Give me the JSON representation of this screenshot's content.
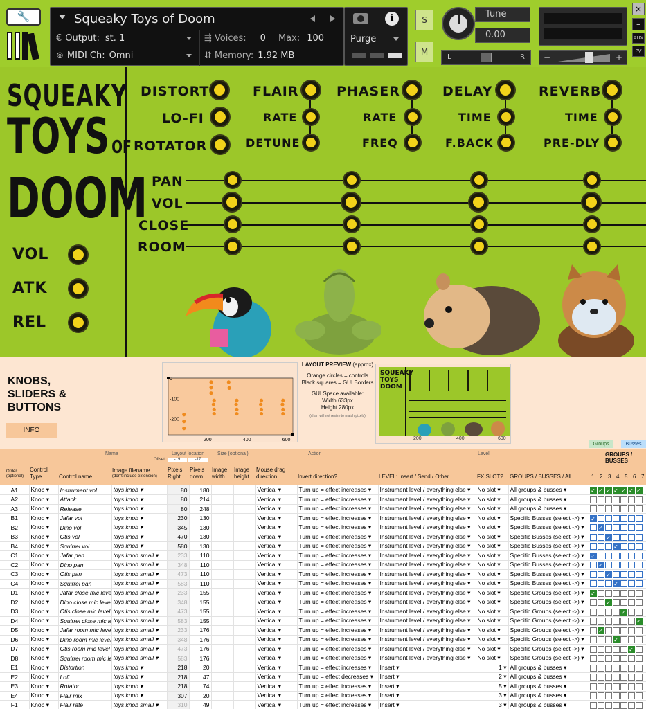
{
  "kontakt": {
    "instrument_name": "Squeaky Toys of Doom",
    "output_label": "Output:",
    "output_value": "st. 1",
    "voices_label": "Voices:",
    "voices_value": "0",
    "max_label": "Max:",
    "max_value": "100",
    "purge_label": "Purge",
    "midi_label": "MIDI Ch:",
    "midi_value": "Omni",
    "memory_label": "Memory:",
    "memory_value": "1.92 MB",
    "tune_label": "Tune",
    "tune_value": "0.00",
    "pan_left": "L",
    "pan_right": "R",
    "solo_label": "S",
    "mute_label": "M",
    "aux_label": "AUX",
    "pv_label": "PV",
    "minus_label": "−",
    "plus_label": "+",
    "close_label": "×",
    "min_label": "–"
  },
  "gui": {
    "logo_line1": "SQUEAKY",
    "logo_line2": "TOYS",
    "logo_of": "OF",
    "logo_line3": "DOOM",
    "left_knobs": [
      "VOL",
      "ATK",
      "REL"
    ],
    "fx": {
      "row1": [
        "DISTORT",
        "FLAIR",
        "PHASER",
        "DELAY",
        "REVERB"
      ],
      "row2": [
        "LO-FI",
        "RATE",
        "RATE",
        "TIME",
        "TIME"
      ],
      "row3": [
        "ROTATOR",
        "DETUNE",
        "FREQ",
        "F.BACK",
        "PRE-DLY"
      ]
    },
    "mixer_rows": [
      "PAN",
      "VOL",
      "CLOSE",
      "ROOM"
    ]
  },
  "sheet": {
    "title_line1": "KNOBS,",
    "title_line2": "SLIDERS &",
    "title_line3": "BUTTONS",
    "info_button": "INFO",
    "preview_title": "LAYOUT PREVIEW",
    "preview_approx": "(approx)",
    "preview_legend1": "Orange circles = controls",
    "preview_legend2": "Black squares = GUI Borders",
    "preview_space": "GUI Space available:",
    "preview_width": "Width 633px",
    "preview_height": "Height 280px",
    "preview_note": "(chart will not resize to match pixels)",
    "chart_ticks_x": [
      "200",
      "400",
      "600"
    ],
    "chart_ticks_y": [
      "0",
      "-100",
      "-200"
    ],
    "group_headers": {
      "name": "Name",
      "layout_location": "Layout location",
      "size": "Size (optional)",
      "action": "Action",
      "level": "Level",
      "groups_busses": "GROUPS / BUSSES",
      "groups_tab": "Groups",
      "busses_tab": "Busses",
      "offset_label": "Offset",
      "offset_x": "-19",
      "offset_y": "-17"
    },
    "columns": {
      "order": "Order (optional)",
      "control_type": "Control Type",
      "control_name": "Control name",
      "image_filename": "Image filename",
      "image_filename_sub": "(don't include extension)",
      "pixels_right": "Pixels Right",
      "pixels_down": "Pixels down",
      "image_width": "Image width",
      "image_height": "Image height",
      "mouse_drag": "Mouse drag direction",
      "invert": "Invert direction?",
      "level": "LEVEL: Insert / Send / Other",
      "fx_slot": "FX SLOT?",
      "groups_busses_all": "GROUPS / BUSSES / All",
      "slot_numbers": [
        "1",
        "2",
        "3",
        "4",
        "5",
        "6",
        "7"
      ]
    },
    "rows": [
      {
        "id": "A1",
        "type": "Knob",
        "name": "Instrument vol",
        "image": "toys knob",
        "x": "80",
        "y": "180",
        "drag": "Vertical",
        "invert": "Turn up = effect increases",
        "level": "Instrument level / everything else",
        "fx": "No slot",
        "groups": "All groups & busses",
        "checks": "all"
      },
      {
        "id": "A2",
        "type": "Knob",
        "name": "Attack",
        "image": "toys knob",
        "x": "80",
        "y": "214",
        "drag": "Vertical",
        "invert": "Turn up = effect increases",
        "level": "Instrument level / everything else",
        "fx": "No slot",
        "groups": "All groups & busses",
        "checks": "none"
      },
      {
        "id": "A3",
        "type": "Knob",
        "name": "Release",
        "image": "toys knob",
        "x": "80",
        "y": "248",
        "drag": "Vertical",
        "invert": "Turn up = effect increases",
        "level": "Instrument level / everything else",
        "fx": "No slot",
        "groups": "All groups & busses",
        "checks": "none"
      },
      {
        "id": "B1",
        "type": "Knob",
        "name": "Jafar vol",
        "image": "toys knob",
        "x": "230",
        "y": "130",
        "drag": "Vertical",
        "invert": "Turn up = effect increases",
        "level": "Instrument level / everything else",
        "fx": "No slot",
        "groups": "Specific Busses (select ->)",
        "checks": "b1"
      },
      {
        "id": "B2",
        "type": "Knob",
        "name": "Dino vol",
        "image": "toys knob",
        "x": "345",
        "y": "130",
        "drag": "Vertical",
        "invert": "Turn up = effect increases",
        "level": "Instrument level / everything else",
        "fx": "No slot",
        "groups": "Specific Busses (select ->)",
        "checks": "b2"
      },
      {
        "id": "B3",
        "type": "Knob",
        "name": "Otis vol",
        "image": "toys knob",
        "x": "470",
        "y": "130",
        "drag": "Vertical",
        "invert": "Turn up = effect increases",
        "level": "Instrument level / everything else",
        "fx": "No slot",
        "groups": "Specific Busses (select ->)",
        "checks": "b3"
      },
      {
        "id": "B4",
        "type": "Knob",
        "name": "Squirrel vol",
        "image": "toys knob",
        "x": "580",
        "y": "130",
        "drag": "Vertical",
        "invert": "Turn up = effect increases",
        "level": "Instrument level / everything else",
        "fx": "No slot",
        "groups": "Specific Busses (select ->)",
        "checks": "b4"
      },
      {
        "id": "C1",
        "type": "Knob",
        "name": "Jafar pan",
        "image": "toys knob small",
        "x": "233",
        "y": "110",
        "drag": "Vertical",
        "invert": "Turn up = effect increases",
        "level": "Instrument level / everything else",
        "fx": "No slot",
        "groups": "Specific Busses (select ->)",
        "checks": "b1"
      },
      {
        "id": "C2",
        "type": "Knob",
        "name": "Dino pan",
        "image": "toys knob small",
        "x": "348",
        "y": "110",
        "drag": "Vertical",
        "invert": "Turn up = effect increases",
        "level": "Instrument level / everything else",
        "fx": "No slot",
        "groups": "Specific Busses (select ->)",
        "checks": "b2"
      },
      {
        "id": "C3",
        "type": "Knob",
        "name": "Otis pan",
        "image": "toys knob small",
        "x": "473",
        "y": "110",
        "drag": "Vertical",
        "invert": "Turn up = effect increases",
        "level": "Instrument level / everything else",
        "fx": "No slot",
        "groups": "Specific Busses (select ->)",
        "checks": "b3"
      },
      {
        "id": "C4",
        "type": "Knob",
        "name": "Squirrel pan",
        "image": "toys knob small",
        "x": "583",
        "y": "110",
        "drag": "Vertical",
        "invert": "Turn up = effect increases",
        "level": "Instrument level / everything else",
        "fx": "No slot",
        "groups": "Specific Busses (select ->)",
        "checks": "b4"
      },
      {
        "id": "D1",
        "type": "Knob",
        "name": "Jafar close mic leve",
        "image": "toys knob small",
        "x": "233",
        "y": "155",
        "drag": "Vertical",
        "invert": "Turn up = effect increases",
        "level": "Instrument level / everything else",
        "fx": "No slot",
        "groups": "Specific Groups (select ->)",
        "checks": "g1"
      },
      {
        "id": "D2",
        "type": "Knob",
        "name": "Dino close mic leve",
        "image": "toys knob small",
        "x": "348",
        "y": "155",
        "drag": "Vertical",
        "invert": "Turn up = effect increases",
        "level": "Instrument level / everything else",
        "fx": "No slot",
        "groups": "Specific Groups (select ->)",
        "checks": "g3"
      },
      {
        "id": "D3",
        "type": "Knob",
        "name": "Otis close mic level",
        "image": "toys knob small",
        "x": "473",
        "y": "155",
        "drag": "Vertical",
        "invert": "Turn up = effect increases",
        "level": "Instrument level / everything else",
        "fx": "No slot",
        "groups": "Specific Groups (select ->)",
        "checks": "g5"
      },
      {
        "id": "D4",
        "type": "Knob",
        "name": "Squirrel close mic le",
        "image": "toys knob small",
        "x": "583",
        "y": "155",
        "drag": "Vertical",
        "invert": "Turn up = effect increases",
        "level": "Instrument level / everything else",
        "fx": "No slot",
        "groups": "Specific Groups (select ->)",
        "checks": "g7"
      },
      {
        "id": "D5",
        "type": "Knob",
        "name": "Jafar room mic leve",
        "image": "toys knob small",
        "x": "233",
        "y": "176",
        "drag": "Vertical",
        "invert": "Turn up = effect increases",
        "level": "Instrument level / everything else",
        "fx": "No slot",
        "groups": "Specific Groups (select ->)",
        "checks": "g2"
      },
      {
        "id": "D6",
        "type": "Knob",
        "name": "Dino room mic level",
        "image": "toys knob small",
        "x": "348",
        "y": "176",
        "drag": "Vertical",
        "invert": "Turn up = effect increases",
        "level": "Instrument level / everything else",
        "fx": "No slot",
        "groups": "Specific Groups (select ->)",
        "checks": "g4"
      },
      {
        "id": "D7",
        "type": "Knob",
        "name": "Otis room mic level",
        "image": "toys knob small",
        "x": "473",
        "y": "176",
        "drag": "Vertical",
        "invert": "Turn up = effect increases",
        "level": "Instrument level / everything else",
        "fx": "No slot",
        "groups": "Specific Groups (select ->)",
        "checks": "g6"
      },
      {
        "id": "D8",
        "type": "Knob",
        "name": "Squirrel room mic le",
        "image": "toys knob small",
        "x": "583",
        "y": "176",
        "drag": "Vertical",
        "invert": "Turn up = effect increases",
        "level": "Instrument level / everything else",
        "fx": "No slot",
        "groups": "Specific Groups (select ->)",
        "checks": "g8"
      },
      {
        "id": "E1",
        "type": "Knob",
        "name": "Distortion",
        "image": "toys knob",
        "x": "218",
        "y": "20",
        "drag": "Vertical",
        "invert": "Turn up = effect increases",
        "level": "Insert",
        "fx": "1",
        "groups": "All groups & busses",
        "checks": "none"
      },
      {
        "id": "E2",
        "type": "Knob",
        "name": "Lofi",
        "image": "toys knob",
        "x": "218",
        "y": "47",
        "drag": "Vertical",
        "invert": "Turn up = effect decreases",
        "level": "Insert",
        "fx": "2",
        "groups": "All groups & busses",
        "checks": "none"
      },
      {
        "id": "E3",
        "type": "Knob",
        "name": "Rotator",
        "image": "toys knob",
        "x": "218",
        "y": "74",
        "drag": "Vertical",
        "invert": "Turn up = effect increases",
        "level": "Insert",
        "fx": "5",
        "groups": "All groups & busses",
        "checks": "none"
      },
      {
        "id": "E4",
        "type": "Knob",
        "name": "Flair mix",
        "image": "toys knob",
        "x": "307",
        "y": "20",
        "drag": "Vertical",
        "invert": "Turn up = effect increases",
        "level": "Insert",
        "fx": "3",
        "groups": "All groups & busses",
        "checks": "none"
      },
      {
        "id": "F1",
        "type": "Knob",
        "name": "Flair rate",
        "image": "toys knob small",
        "x": "310",
        "y": "49",
        "drag": "Vertical",
        "invert": "Turn up = effect increases",
        "level": "Insert",
        "fx": "3",
        "groups": "All groups & busses",
        "checks": "none"
      }
    ]
  },
  "chart_data": [
    {
      "type": "scatter",
      "title": "",
      "xlim": [
        0,
        633
      ],
      "ylim": [
        -280,
        0
      ],
      "x": [
        80,
        80,
        80,
        230,
        345,
        470,
        580,
        233,
        348,
        473,
        583,
        233,
        348,
        473,
        583,
        233,
        348,
        473,
        583,
        218,
        218,
        218,
        307,
        310
      ],
      "y": [
        -180,
        -214,
        -248,
        -130,
        -130,
        -130,
        -130,
        -110,
        -110,
        -110,
        -110,
        -155,
        -155,
        -155,
        -155,
        -176,
        -176,
        -176,
        -176,
        -20,
        -47,
        -74,
        -20,
        -49
      ]
    }
  ],
  "colors": {
    "gui_green": "#9cc729",
    "knob_yellow": "#f2d21a",
    "header_orange": "#f7c79a",
    "sheet_peach": "#fde6d2",
    "check_green": "#2a8c2a",
    "check_blue": "#3572c6"
  }
}
